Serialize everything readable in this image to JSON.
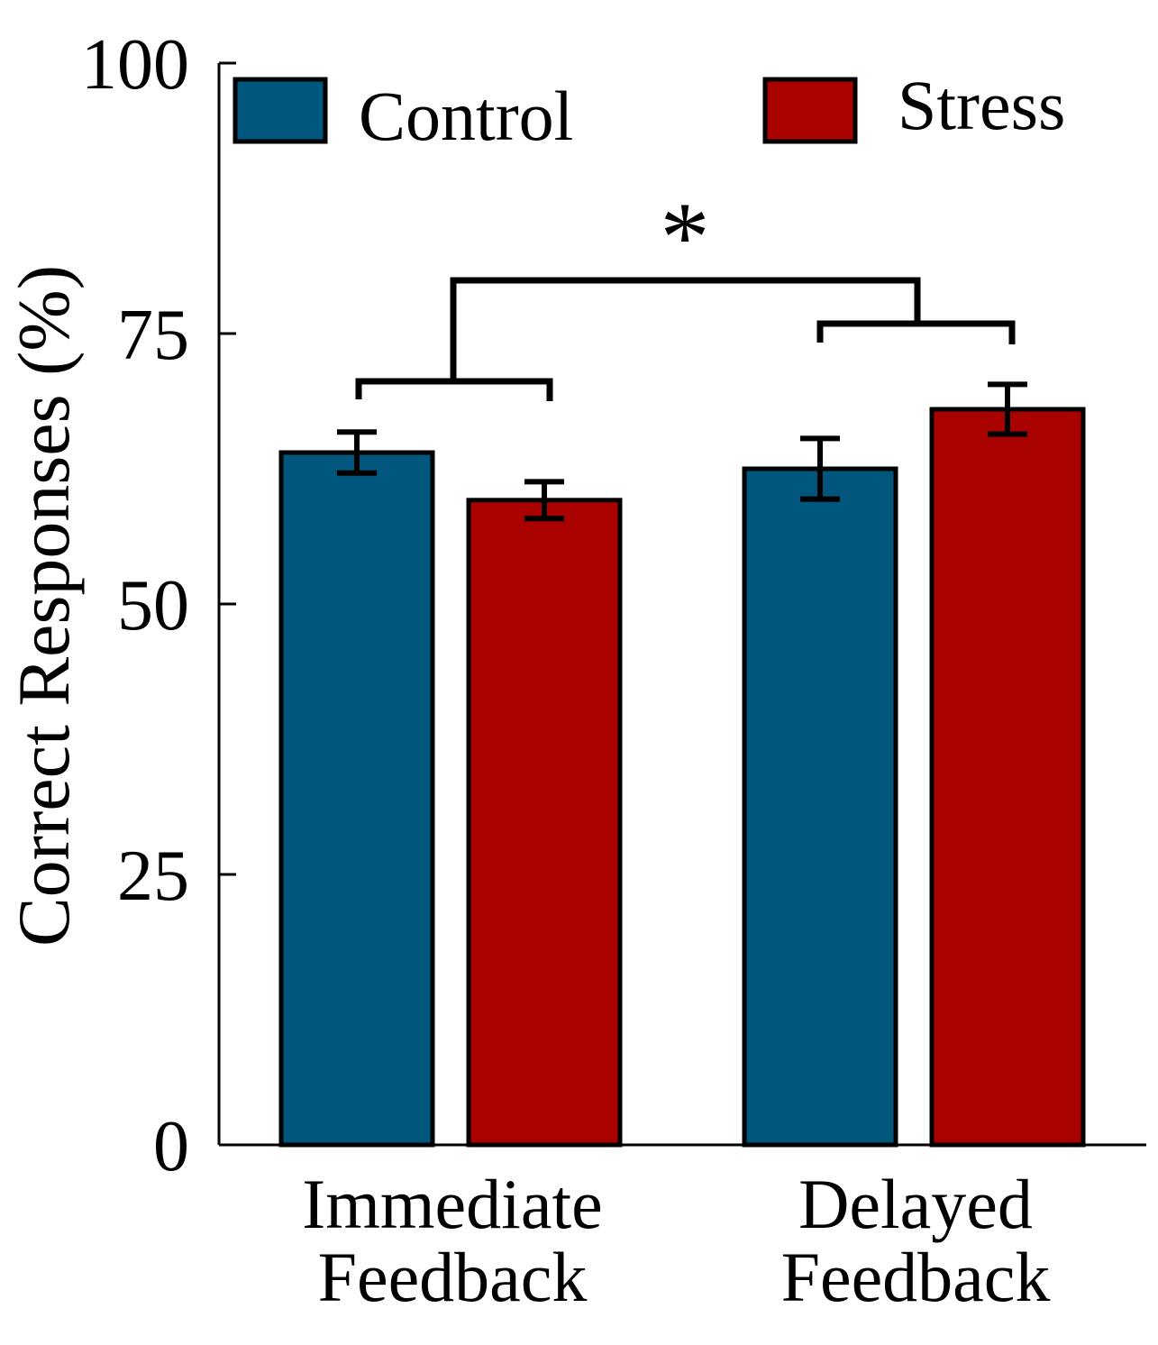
{
  "chart_data": {
    "type": "bar",
    "title": "",
    "ylabel": "Correct Responses (%)",
    "xlabel": "",
    "ylim": [
      0,
      100
    ],
    "yticks": [
      0,
      25,
      50,
      75,
      100
    ],
    "grid": false,
    "legend_position": "top",
    "categories": [
      {
        "line1": "Immediate",
        "line2": "Feedback"
      },
      {
        "line1": "Delayed",
        "line2": "Feedback"
      }
    ],
    "series": [
      {
        "name": "Control",
        "color": "#01567e",
        "values": [
          64,
          62.5
        ],
        "errors": [
          1.9,
          2.8
        ]
      },
      {
        "name": "Stress",
        "color": "#a80100",
        "values": [
          59.6,
          68
        ],
        "errors": [
          1.7,
          2.3
        ]
      }
    ],
    "annotation": "*"
  }
}
